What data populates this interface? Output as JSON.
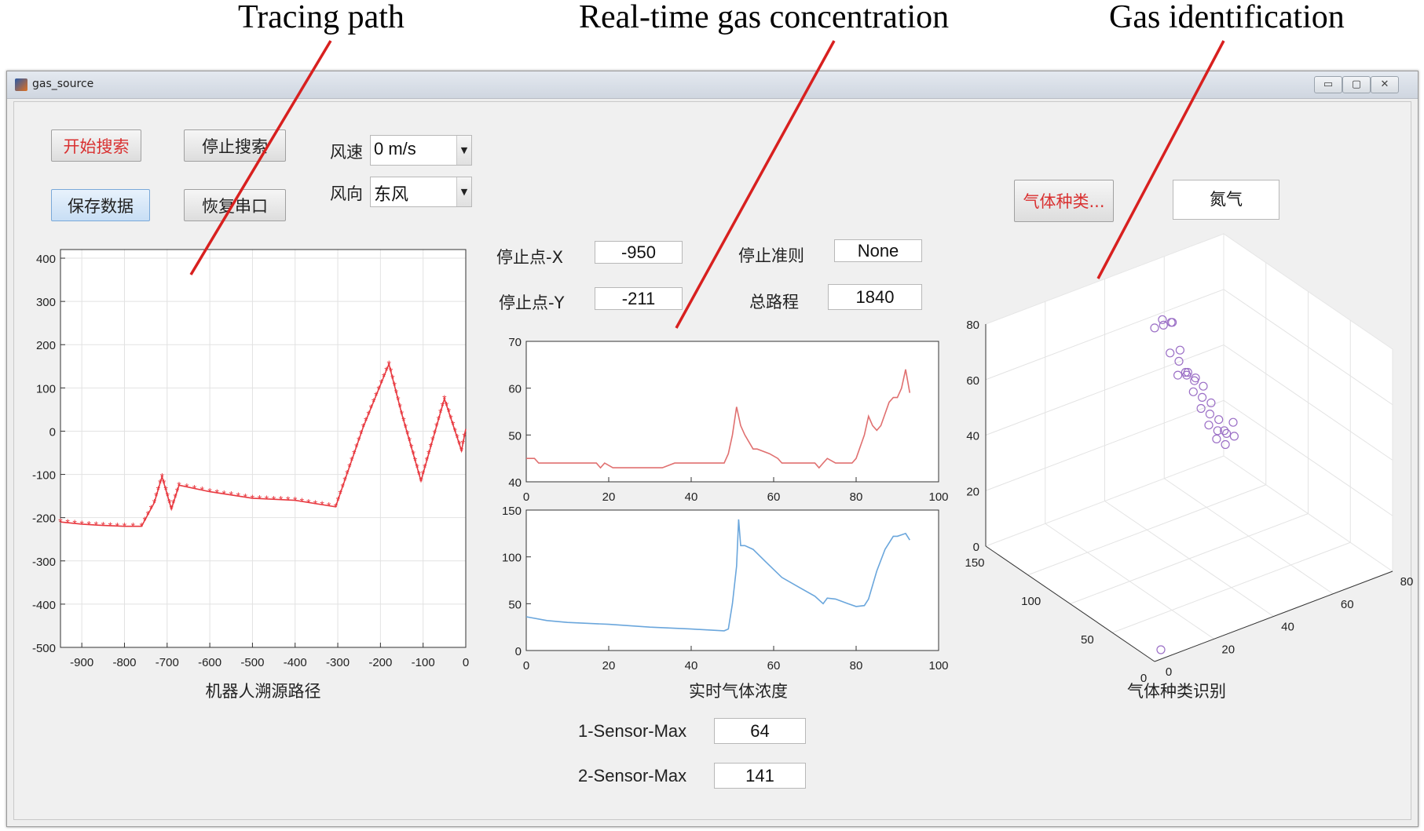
{
  "annotations": {
    "tracing_path": "Tracing path",
    "realtime_gas": "Real-time gas concentration",
    "gas_identification": "Gas identification"
  },
  "window": {
    "title": "gas_source",
    "minimize": "▭",
    "maximize": "▢",
    "close": "✕"
  },
  "controls": {
    "start_search": "开始搜索",
    "stop_search": "停止搜索",
    "save_data": "保存数据",
    "restore_port": "恢复串口",
    "wind_speed_label": "风速",
    "wind_speed_value": "0 m/s",
    "wind_dir_label": "风向",
    "wind_dir_value": "东风",
    "gas_type_button": "气体种类...",
    "gas_type_value": "氮气"
  },
  "stats": {
    "stop_x_label": "停止点-X",
    "stop_x_value": "-950",
    "stop_y_label": "停止点-Y",
    "stop_y_value": "-211",
    "stop_criteria_label": "停止准则",
    "stop_criteria_value": "None",
    "total_path_label": "总路程",
    "total_path_value": "1840",
    "sensor1_max_label": "1-Sensor-Max",
    "sensor1_max_value": "64",
    "sensor2_max_label": "2-Sensor-Max",
    "sensor2_max_value": "141"
  },
  "colors": {
    "path": "#e8383f",
    "sensor1": "#e07070",
    "sensor2": "#6aa6dc",
    "scatter": "#9b6fc6",
    "red_text": "#d93030"
  },
  "chart_data": [
    {
      "type": "line",
      "xlabel": "机器人溯源路径",
      "xlim": [
        -950,
        0
      ],
      "ylim": [
        -500,
        420
      ],
      "xticks": [
        -900,
        -800,
        -700,
        -600,
        -500,
        -400,
        -300,
        -200,
        -100,
        0
      ],
      "yticks": [
        -500,
        -400,
        -300,
        -200,
        -100,
        0,
        100,
        200,
        300,
        400
      ],
      "grid": true,
      "marker": "*",
      "x": [
        -950,
        -900,
        -850,
        -800,
        -760,
        -730,
        -712,
        -690,
        -672,
        -600,
        -500,
        -400,
        -305,
        -240,
        -180,
        -150,
        -105,
        -50,
        -10,
        0
      ],
      "y": [
        -210,
        -215,
        -218,
        -220,
        -220,
        -165,
        -105,
        -180,
        -125,
        -140,
        -155,
        -160,
        -175,
        10,
        155,
        40,
        -115,
        75,
        -45,
        5
      ]
    },
    {
      "type": "line",
      "xlim": [
        0,
        100
      ],
      "ylim": [
        40,
        70
      ],
      "xticks": [
        0,
        20,
        40,
        60,
        80,
        100
      ],
      "yticks": [
        40,
        50,
        60,
        70
      ],
      "x": [
        0,
        2,
        3,
        10,
        17,
        18,
        19,
        21,
        23,
        30,
        33,
        36,
        40,
        48,
        49,
        50,
        51,
        52,
        53,
        55,
        56,
        59,
        61,
        62,
        64,
        67,
        70,
        71,
        72,
        73,
        75,
        76,
        79,
        80,
        82,
        83,
        84,
        85,
        86,
        88,
        89,
        90,
        91,
        92,
        93
      ],
      "y": [
        45,
        45,
        44,
        44,
        44,
        43,
        44,
        43,
        43,
        43,
        43,
        44,
        44,
        44,
        46,
        50,
        56,
        52,
        50,
        47,
        47,
        46,
        45,
        44,
        44,
        44,
        44,
        43,
        44,
        45,
        44,
        44,
        44,
        45,
        50,
        54,
        52,
        51,
        52,
        57,
        58,
        58,
        60,
        64,
        59
      ]
    },
    {
      "type": "line",
      "xlabel": "实时气体浓度",
      "xlim": [
        0,
        100
      ],
      "ylim": [
        0,
        150
      ],
      "xticks": [
        0,
        20,
        40,
        60,
        80,
        100
      ],
      "yticks": [
        0,
        50,
        100,
        150
      ],
      "x": [
        0,
        5,
        10,
        20,
        30,
        40,
        48,
        49,
        50,
        51,
        51.5,
        52,
        53,
        55,
        58,
        62,
        66,
        70,
        72,
        73,
        75,
        78,
        80,
        82,
        83,
        85,
        87,
        89,
        90,
        92,
        93
      ],
      "y": [
        36,
        32,
        30,
        28,
        25,
        23,
        21,
        23,
        50,
        90,
        140,
        112,
        112,
        108,
        95,
        78,
        68,
        58,
        50,
        56,
        55,
        50,
        47,
        48,
        55,
        85,
        108,
        122,
        122,
        125,
        118
      ]
    },
    {
      "type": "scatter",
      "xlabel": "气体种类识别",
      "axes3d": {
        "z_ticks": [
          0,
          20,
          40,
          60,
          80
        ],
        "x_ticks": [
          0,
          50,
          100,
          150
        ],
        "y_ticks": [
          0,
          20,
          40,
          60,
          80
        ]
      },
      "marker": "o",
      "points_z": [
        82,
        83,
        84,
        85,
        84,
        74,
        73,
        70,
        66,
        65,
        65,
        64,
        66,
        63,
        61,
        59,
        57,
        55,
        53,
        51,
        49,
        47,
        45,
        44,
        42,
        40,
        43,
        45,
        48
      ]
    }
  ]
}
